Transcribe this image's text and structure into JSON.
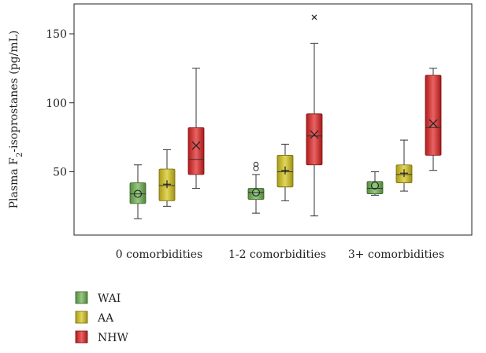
{
  "chart_data": {
    "type": "boxplot",
    "title": "",
    "xlabel": "",
    "ylabel": {
      "prefix": "Plasma F",
      "subscript": "2",
      "suffix": "-isoprostanes (pg/mL)"
    },
    "ylim": [
      0,
      170
    ],
    "yticks": [
      50,
      100,
      150
    ],
    "grid": false,
    "legend_position": "bottom-left",
    "categories": [
      "0 comorbidities",
      "1-2 comorbidities",
      "3+ comorbidities"
    ],
    "series": [
      {
        "name": "WAI",
        "color": "#6ab04c",
        "mean_marker": "circle",
        "boxes": [
          {
            "min": 16,
            "q1": 27,
            "median": 34,
            "q3": 42,
            "max": 55,
            "mean": 34,
            "outliers": []
          },
          {
            "min": 20,
            "q1": 30,
            "median": 35,
            "q3": 38,
            "max": 48,
            "mean": 35,
            "outliers": [
              54
            ]
          },
          {
            "min": 33,
            "q1": 34,
            "median": 38,
            "q3": 43,
            "max": 50,
            "mean": 40,
            "outliers": []
          }
        ]
      },
      {
        "name": "AA",
        "color": "#d4c318",
        "mean_marker": "plus",
        "boxes": [
          {
            "min": 25,
            "q1": 29,
            "median": 40,
            "q3": 52,
            "max": 66,
            "mean": 41,
            "outliers": []
          },
          {
            "min": 29,
            "q1": 39,
            "median": 50,
            "q3": 62,
            "max": 70,
            "mean": 51,
            "outliers": []
          },
          {
            "min": 36,
            "q1": 42,
            "median": 48,
            "q3": 55,
            "max": 73,
            "mean": 49,
            "outliers": []
          }
        ]
      },
      {
        "name": "NHW",
        "color": "#e02020",
        "mean_marker": "x",
        "boxes": [
          {
            "min": 38,
            "q1": 48,
            "median": 59,
            "q3": 82,
            "max": 125,
            "mean": 69,
            "outliers": []
          },
          {
            "min": 18,
            "q1": 55,
            "median": 76,
            "q3": 92,
            "max": 143,
            "mean": 77,
            "outliers": [
              162
            ]
          },
          {
            "min": 51,
            "q1": 62,
            "median": 82,
            "q3": 120,
            "max": 125,
            "mean": 85,
            "outliers": []
          }
        ]
      }
    ]
  }
}
